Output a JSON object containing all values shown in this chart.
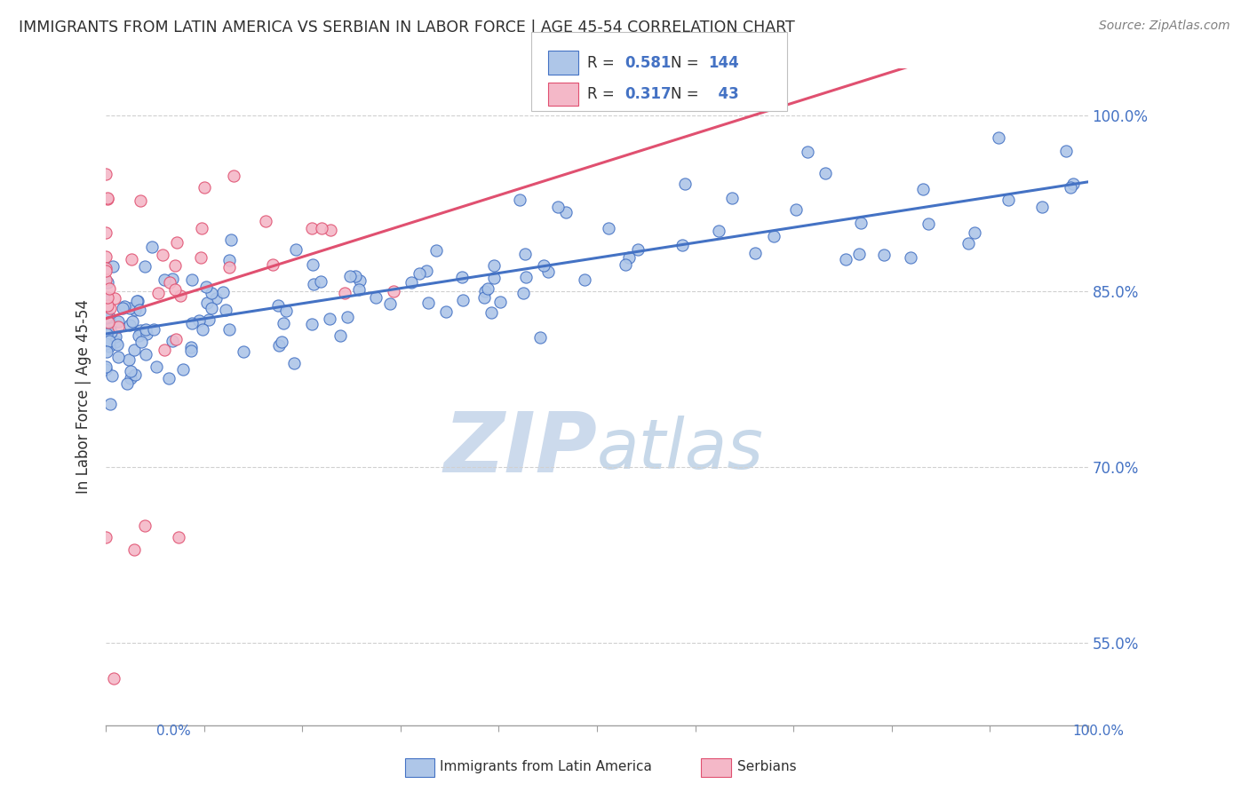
{
  "title": "IMMIGRANTS FROM LATIN AMERICA VS SERBIAN IN LABOR FORCE | AGE 45-54 CORRELATION CHART",
  "source": "Source: ZipAtlas.com",
  "ylabel": "In Labor Force | Age 45-54",
  "xlim": [
    0.0,
    1.0
  ],
  "ylim": [
    0.48,
    1.04
  ],
  "xticks": [
    0.0,
    0.1,
    0.2,
    0.3,
    0.4,
    0.5,
    0.6,
    0.7,
    0.8,
    0.9,
    1.0
  ],
  "ytick_positions": [
    0.55,
    0.7,
    0.85,
    1.0
  ],
  "ytick_labels": [
    "55.0%",
    "70.0%",
    "85.0%",
    "100.0%"
  ],
  "R_latin": 0.581,
  "N_latin": 144,
  "R_serbian": 0.317,
  "N_serbian": 43,
  "color_latin_fill": "#aec6e8",
  "color_latin_edge": "#4472c4",
  "color_serbian_fill": "#f4b8c8",
  "color_serbian_edge": "#e05070",
  "color_line_latin": "#4472c4",
  "color_line_serbian": "#e05070",
  "color_text_blue": "#4472c4",
  "color_text_dark": "#303030",
  "watermark_color": "#ccdaec",
  "background_color": "#ffffff",
  "grid_color": "#d0d0d0",
  "legend_box_color": "#e8e8e8"
}
